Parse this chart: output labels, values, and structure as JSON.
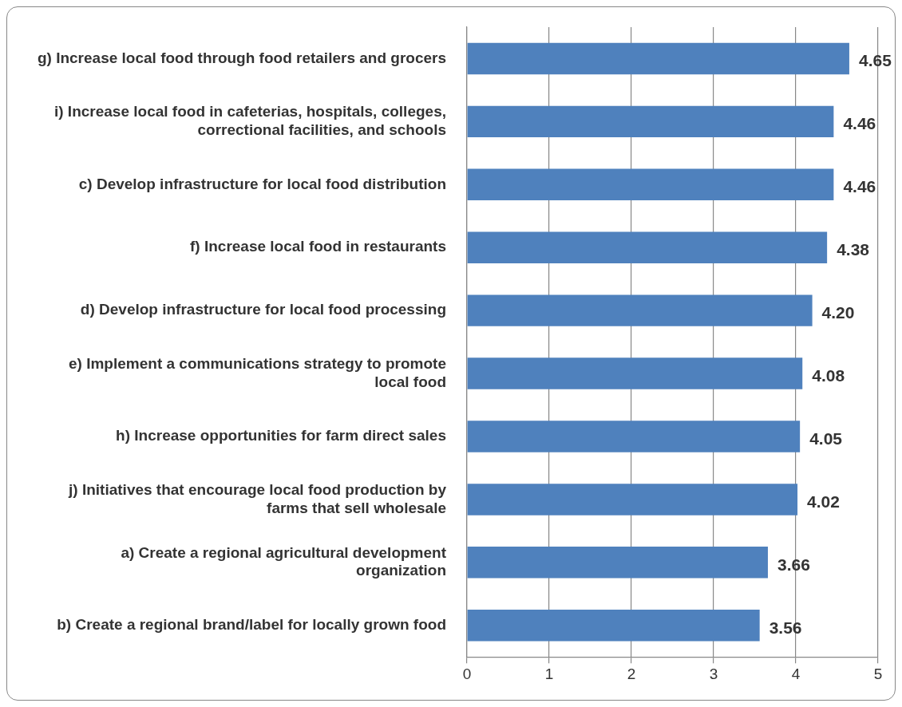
{
  "chart_data": {
    "type": "bar",
    "orientation": "horizontal",
    "categories": [
      "g) Increase local food through food retailers and grocers",
      "i) Increase local food in cafeterias, hospitals, colleges, correctional facilities, and schools",
      "c) Develop infrastructure for local food distribution",
      "f) Increase local food in restaurants",
      "d) Develop infrastructure for local food processing",
      "e) Implement a communications strategy to promote local food",
      "h) Increase opportunities for farm direct sales",
      "j) Initiatives that encourage local food production by farms that sell wholesale",
      "a) Create a regional agricultural development organization",
      "b) Create a regional brand/label for locally grown food"
    ],
    "values": [
      4.65,
      4.46,
      4.46,
      4.38,
      4.2,
      4.08,
      4.05,
      4.02,
      3.66,
      3.56
    ],
    "value_labels": [
      "4.65",
      "4.46",
      "4.46",
      "4.38",
      "4.20",
      "4.08",
      "4.05",
      "4.02",
      "3.66",
      "3.56"
    ],
    "color": "#4f81bd",
    "xlim": [
      0,
      5
    ],
    "xticks": [
      0,
      1,
      2,
      3,
      4,
      5
    ],
    "grid": "x",
    "legend": false
  }
}
